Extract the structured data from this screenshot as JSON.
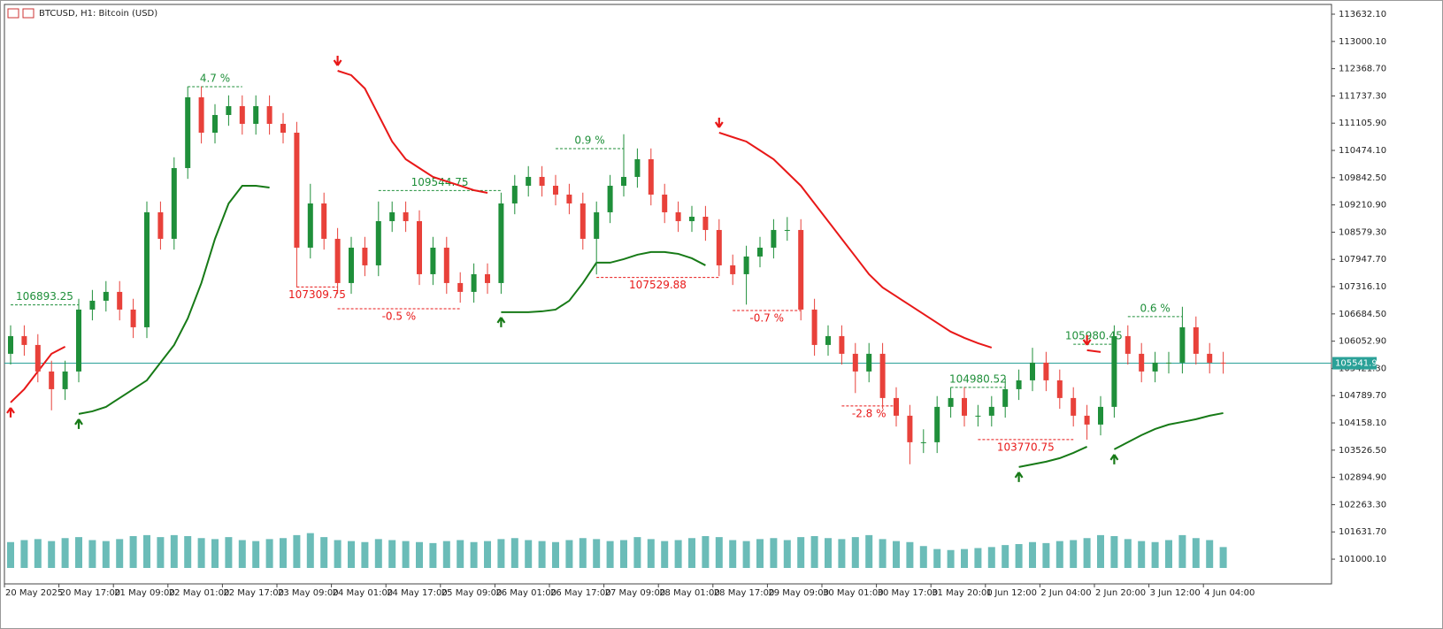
{
  "chart_data": {
    "type": "candlestick",
    "title": "BTCUSD, H1:  Bitcoin (USD)",
    "bull_color": "#1f8f3a",
    "bear_color": "#e8413a",
    "grid": false,
    "ylim": [
      100427,
      113858
    ],
    "yticks": [
      {
        "value": 113632.1,
        "label": "113632.10"
      },
      {
        "value": 113000.1,
        "label": "113000.10"
      },
      {
        "value": 112368.7,
        "label": "112368.70"
      },
      {
        "value": 111737.3,
        "label": "111737.30"
      },
      {
        "value": 111105.9,
        "label": "111105.90"
      },
      {
        "value": 110474.1,
        "label": "110474.10"
      },
      {
        "value": 109842.5,
        "label": "109842.50"
      },
      {
        "value": 109210.9,
        "label": "109210.90"
      },
      {
        "value": 108579.3,
        "label": "108579.30"
      },
      {
        "value": 107947.7,
        "label": "107947.70"
      },
      {
        "value": 107316.1,
        "label": "107316.10"
      },
      {
        "value": 106684.5,
        "label": "106684.50"
      },
      {
        "value": 106052.9,
        "label": "106052.90"
      },
      {
        "value": 105421.3,
        "label": "105421.30"
      },
      {
        "value": 104789.7,
        "label": "104789.70"
      },
      {
        "value": 104158.1,
        "label": "104158.10"
      },
      {
        "value": 103526.5,
        "label": "103526.50"
      },
      {
        "value": 102894.9,
        "label": "102894.90"
      },
      {
        "value": 102263.3,
        "label": "102263.30"
      },
      {
        "value": 101631.7,
        "label": "101631.70"
      },
      {
        "value": 101000.1,
        "label": "101000.10"
      }
    ],
    "categories": [
      "20 May 2025",
      null,
      null,
      null,
      "20 May 17:00",
      null,
      null,
      null,
      "21 May 09:00",
      null,
      null,
      null,
      "22 May 01:00",
      null,
      null,
      null,
      "22 May 17:00",
      null,
      null,
      null,
      "23 May 09:00",
      null,
      null,
      null,
      "24 May 01:00",
      null,
      null,
      null,
      "24 May 17:00",
      null,
      null,
      null,
      "25 May 09:00",
      null,
      null,
      null,
      "26 May 01:00",
      null,
      null,
      null,
      "26 May 17:00",
      null,
      null,
      null,
      "27 May 09:00",
      null,
      null,
      null,
      "28 May 01:00",
      null,
      null,
      null,
      "28 May 17:00",
      null,
      null,
      null,
      "29 May 09:00",
      null,
      null,
      null,
      "30 May 01:00",
      null,
      null,
      null,
      "30 May 17:00",
      null,
      null,
      null,
      "31 May 20:00",
      null,
      null,
      null,
      "1 Jun 12:00",
      null,
      null,
      null,
      "2 Jun 04:00",
      null,
      null,
      null,
      "2 Jun 20:00",
      null,
      null,
      null,
      "3 Jun 12:00",
      null,
      null,
      null,
      "4 Jun 04:00",
      null
    ],
    "open": [
      105760,
      106170,
      105965,
      105350,
      104940,
      105350,
      106785,
      106990,
      107195,
      106785,
      106375,
      109040,
      108425,
      110065,
      111705,
      110885,
      111295,
      111500,
      111090,
      111500,
      111090,
      110885,
      108220,
      109245,
      108425,
      107400,
      108220,
      107810,
      108835,
      109040,
      108835,
      107605,
      108220,
      107400,
      107195,
      107605,
      107400,
      109245,
      109655,
      109860,
      109655,
      109450,
      109245,
      108425,
      109040,
      109655,
      109860,
      110270,
      109450,
      109040,
      108835,
      108937,
      108630,
      107810,
      107605,
      108015,
      108220,
      108630,
      108630,
      106785,
      105965,
      106170,
      105760,
      105350,
      105760,
      104735,
      104325,
      103710,
      103710,
      104530,
      104735,
      104325,
      104325,
      104530,
      104940,
      105145,
      105555,
      105145,
      104735,
      104325,
      104120,
      104530,
      106170,
      105760,
      105350,
      105555,
      105555,
      106375,
      105760,
      105555
    ],
    "high": [
      106420,
      106420,
      106215,
      105600,
      105600,
      107035,
      107240,
      107445,
      107445,
      107035,
      109290,
      109290,
      110315,
      111955,
      111955,
      111545,
      111750,
      111750,
      111750,
      111750,
      111340,
      111135,
      109700,
      109495,
      108675,
      108470,
      108470,
      109290,
      109290,
      109290,
      109085,
      108470,
      108470,
      107650,
      107855,
      107855,
      109495,
      109905,
      110110,
      110110,
      109905,
      109700,
      109495,
      109290,
      109905,
      110850,
      110520,
      110520,
      109700,
      109290,
      109187,
      109187,
      108880,
      108060,
      108265,
      108470,
      108880,
      108930,
      108880,
      107035,
      106420,
      106420,
      106010,
      106010,
      106010,
      104985,
      104575,
      104010,
      104780,
      104985,
      104985,
      104575,
      104780,
      105190,
      105395,
      105900,
      105805,
      105395,
      104985,
      104575,
      104780,
      106420,
      106420,
      106010,
      105805,
      105805,
      106850,
      106625,
      106010,
      105805
    ],
    "low": [
      105510,
      105715,
      105100,
      104450,
      104690,
      105100,
      106535,
      106740,
      106535,
      106125,
      106125,
      108175,
      108175,
      109815,
      110635,
      110635,
      111045,
      110840,
      110840,
      110840,
      110635,
      107300,
      107970,
      108175,
      107150,
      107150,
      107560,
      107560,
      108585,
      108585,
      107355,
      107355,
      107150,
      106945,
      106945,
      107150,
      107150,
      108995,
      109405,
      109405,
      109200,
      108995,
      108175,
      107600,
      108790,
      109405,
      109610,
      109200,
      108790,
      108585,
      108585,
      108380,
      107560,
      107355,
      106900,
      107765,
      107970,
      108380,
      106535,
      105715,
      105715,
      105510,
      104850,
      105100,
      104485,
      104075,
      103200,
      103460,
      103460,
      104280,
      104075,
      104075,
      104075,
      104280,
      104690,
      104895,
      104895,
      104485,
      104075,
      103770,
      103870,
      104280,
      105510,
      105100,
      105100,
      105305,
      105305,
      105510,
      105305,
      105300
    ],
    "close": [
      106170,
      105965,
      105350,
      104940,
      105350,
      106785,
      106990,
      107195,
      106785,
      106375,
      109040,
      108425,
      110065,
      111705,
      110885,
      111295,
      111500,
      111090,
      111500,
      111090,
      110885,
      108220,
      109245,
      108425,
      107400,
      108220,
      107810,
      108835,
      109040,
      108835,
      107605,
      108220,
      107400,
      107195,
      107605,
      107400,
      109245,
      109655,
      109860,
      109655,
      109450,
      109245,
      108425,
      109040,
      109655,
      109860,
      110270,
      109450,
      109040,
      108835,
      108937,
      108630,
      107810,
      107605,
      108015,
      108220,
      108630,
      108630,
      106785,
      105965,
      106170,
      105760,
      105350,
      105760,
      104735,
      104325,
      103710,
      103710,
      104530,
      104735,
      104325,
      104325,
      104530,
      104940,
      105145,
      105555,
      105145,
      104735,
      104325,
      104120,
      104530,
      106170,
      105760,
      105350,
      105555,
      105555,
      106375,
      105760,
      105555,
      105541.9
    ],
    "volume": {
      "color": "#3aa6a0",
      "ylim": [
        0,
        4000
      ],
      "values": [
        2600,
        2800,
        2900,
        2700,
        3000,
        3100,
        2800,
        2700,
        2900,
        3200,
        3300,
        3100,
        3300,
        3200,
        3000,
        2900,
        3100,
        2800,
        2700,
        2900,
        3000,
        3300,
        3500,
        3100,
        2800,
        2700,
        2600,
        2900,
        2800,
        2700,
        2600,
        2500,
        2700,
        2800,
        2600,
        2700,
        2900,
        3000,
        2800,
        2700,
        2600,
        2800,
        3000,
        2900,
        2700,
        2800,
        3100,
        2900,
        2700,
        2800,
        3000,
        3200,
        3100,
        2800,
        2700,
        2900,
        3000,
        2800,
        3100,
        3200,
        3000,
        2900,
        3100,
        3300,
        2900,
        2700,
        2600,
        2200,
        1900,
        1800,
        1900,
        2000,
        2100,
        2300,
        2400,
        2600,
        2500,
        2700,
        2800,
        3000,
        3300,
        3200,
        2900,
        2700,
        2600,
        2800,
        3300,
        3000,
        2800,
        2100
      ]
    },
    "indicators": [
      {
        "color": "#e81818",
        "values": [
          104632,
          104940,
          105350,
          105760,
          105924,
          null,
          null,
          null,
          null,
          null,
          null,
          null,
          null,
          null,
          null,
          null,
          null,
          null,
          null,
          null,
          null,
          null,
          null,
          null,
          112320,
          112218,
          111910,
          111295,
          110680,
          110270,
          110065,
          109860,
          109757,
          109655,
          109552,
          109491,
          null,
          null,
          null,
          null,
          null,
          null,
          null,
          null,
          null,
          null,
          null,
          null,
          null,
          null,
          null,
          null,
          110885,
          110782,
          110680,
          110475,
          110270,
          109962,
          109655,
          109245,
          108835,
          108425,
          108015,
          107605,
          107297,
          107092,
          106887,
          106682,
          106477,
          106272,
          106129,
          106006,
          105904,
          null,
          null,
          null,
          null,
          null,
          null,
          105842,
          105801,
          null,
          null,
          null,
          null,
          null,
          null,
          null,
          null,
          null
        ]
      },
      {
        "color": "#177a17",
        "values": [
          null,
          null,
          null,
          null,
          null,
          104366,
          104427,
          104530,
          104735,
          104940,
          105145,
          105555,
          105965,
          106580,
          107400,
          108425,
          109245,
          109655,
          109655,
          109614,
          null,
          null,
          null,
          null,
          null,
          null,
          null,
          null,
          null,
          null,
          null,
          null,
          null,
          null,
          null,
          null,
          106724,
          106724,
          106724,
          106744,
          106785,
          106990,
          107400,
          107872,
          107872,
          107954,
          108056,
          108118,
          108118,
          108077,
          107974,
          107810,
          null,
          null,
          null,
          null,
          null,
          null,
          null,
          null,
          null,
          null,
          null,
          null,
          null,
          null,
          null,
          null,
          null,
          null,
          null,
          null,
          null,
          null,
          103136,
          103198,
          103259,
          103341,
          103464,
          103607,
          null,
          103546,
          103710,
          103874,
          104017,
          104120,
          104181,
          104243,
          104325,
          104386
        ]
      }
    ],
    "annotations": [
      {
        "label": "106893.25",
        "level": 106893.25,
        "from": 0,
        "to": 5,
        "color": "#1f8f3a"
      },
      {
        "label": "4.7 %",
        "level": 111951,
        "from": 13,
        "to": 17,
        "color": "#1f8f3a"
      },
      {
        "label": "107309.75",
        "level": 107309.75,
        "from": 21,
        "to": 24,
        "color": "#e81818"
      },
      {
        "label": "-0.5 %",
        "level": 106805,
        "from": 24,
        "to": 33,
        "color": "#e81818"
      },
      {
        "label": "109544.75",
        "level": 109544.75,
        "from": 27,
        "to": 36,
        "color": "#1f8f3a"
      },
      {
        "label": "0.9 %",
        "level": 110516,
        "from": 40,
        "to": 45,
        "color": "#1f8f3a"
      },
      {
        "label": "107529.88",
        "level": 107529.88,
        "from": 43,
        "to": 52,
        "color": "#e81818"
      },
      {
        "label": "-0.7 %",
        "level": 106764,
        "from": 53,
        "to": 58,
        "color": "#e81818"
      },
      {
        "label": "-2.8 %",
        "level": 104550,
        "from": 61,
        "to": 65,
        "color": "#e81818"
      },
      {
        "label": "104980.52",
        "level": 104980.52,
        "from": 69,
        "to": 73,
        "color": "#1f8f3a"
      },
      {
        "label": "103770.75",
        "level": 103770.75,
        "from": 71,
        "to": 78,
        "color": "#e81818"
      },
      {
        "label": "105980.45",
        "level": 105980.45,
        "from": 78,
        "to": 81,
        "color": "#1f8f3a"
      },
      {
        "label": "0.6 %",
        "level": 106621,
        "from": 82,
        "to": 86,
        "color": "#1f8f3a"
      }
    ],
    "last_price": {
      "value": 105541.9,
      "label": "105541.90",
      "color": "#2aa198"
    }
  }
}
